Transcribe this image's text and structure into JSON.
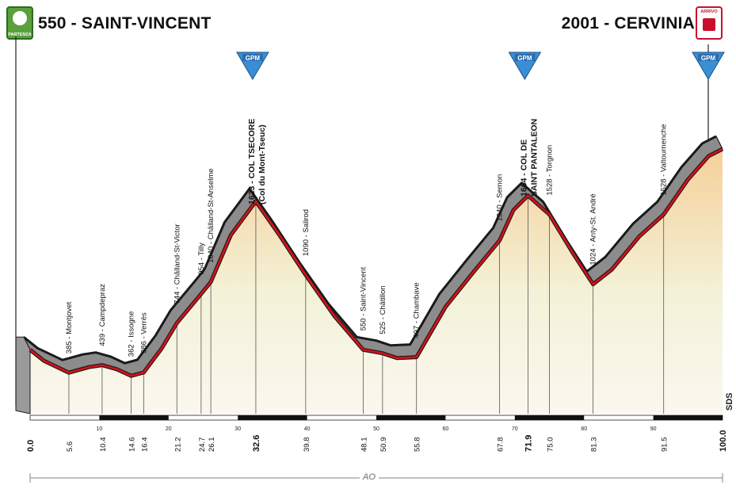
{
  "header": {
    "start": "550 - SAINT-VINCENT",
    "finish": "2001 - CERVINIA",
    "start_badge": "PARTENZA",
    "finish_badge": "ARRIVO"
  },
  "side_label": "SDS",
  "bottom_label": "AO",
  "colors": {
    "road": "#d0121b",
    "profile_fill": "#8c8c8c",
    "profile_stroke": "#1a1a1a",
    "gpm": "#3a8fd4",
    "fill_top": "#f6cf9a",
    "fill_bottom": "#fbf7ef"
  },
  "chart_data": {
    "type": "area",
    "title": "",
    "x_range": [
      0,
      100.0
    ],
    "x_unit": "km",
    "x_ticks": [
      0,
      10,
      20,
      30,
      40,
      50,
      60,
      70,
      80,
      90,
      100
    ],
    "x_tick_labels": [
      "0",
      "10",
      "20",
      "30",
      "40",
      "50",
      "60",
      "70",
      "80",
      "90",
      "100"
    ],
    "profile": [
      {
        "km": 0.0,
        "alt": 550
      },
      {
        "km": 2.0,
        "alt": 470
      },
      {
        "km": 5.6,
        "alt": 385
      },
      {
        "km": 8.5,
        "alt": 425
      },
      {
        "km": 10.4,
        "alt": 439
      },
      {
        "km": 12.5,
        "alt": 410
      },
      {
        "km": 14.6,
        "alt": 362
      },
      {
        "km": 16.4,
        "alt": 386
      },
      {
        "km": 19.0,
        "alt": 560
      },
      {
        "km": 21.2,
        "alt": 744
      },
      {
        "km": 24.7,
        "alt": 954
      },
      {
        "km": 26.1,
        "alt": 1040
      },
      {
        "km": 29.0,
        "alt": 1380
      },
      {
        "km": 32.6,
        "alt": 1623
      },
      {
        "km": 36.0,
        "alt": 1380
      },
      {
        "km": 39.8,
        "alt": 1090
      },
      {
        "km": 44.0,
        "alt": 790
      },
      {
        "km": 48.1,
        "alt": 550
      },
      {
        "km": 50.9,
        "alt": 525
      },
      {
        "km": 53.0,
        "alt": 490
      },
      {
        "km": 55.8,
        "alt": 497
      },
      {
        "km": 60.0,
        "alt": 860
      },
      {
        "km": 64.0,
        "alt": 1110
      },
      {
        "km": 67.8,
        "alt": 1340
      },
      {
        "km": 69.8,
        "alt": 1560
      },
      {
        "km": 71.9,
        "alt": 1664
      },
      {
        "km": 75.0,
        "alt": 1528
      },
      {
        "km": 78.5,
        "alt": 1240
      },
      {
        "km": 81.3,
        "alt": 1024
      },
      {
        "km": 84.0,
        "alt": 1130
      },
      {
        "km": 88.0,
        "alt": 1370
      },
      {
        "km": 91.5,
        "alt": 1528
      },
      {
        "km": 95.0,
        "alt": 1780
      },
      {
        "km": 98.0,
        "alt": 1950
      },
      {
        "km": 100.0,
        "alt": 2001
      }
    ],
    "waypoints": [
      {
        "km": 5.6,
        "km_label": "5.6",
        "label": "385 - Montjovet"
      },
      {
        "km": 10.4,
        "km_label": "10.4",
        "label": "439 - Campdepraz"
      },
      {
        "km": 14.6,
        "km_label": "14.6",
        "label": "362 - Issogne"
      },
      {
        "km": 16.4,
        "km_label": "16.4",
        "label": "386 - Verrès"
      },
      {
        "km": 21.2,
        "km_label": "21.2",
        "label": "744 - Châlland-St-Victor"
      },
      {
        "km": 24.7,
        "km_label": "24.7",
        "label": "954 - Tilly"
      },
      {
        "km": 26.1,
        "km_label": "26.1",
        "label": "1040 - Châlland-St-Anselme"
      },
      {
        "km": 32.6,
        "km_label": "32.6",
        "label": "1623 - COL TSECORE",
        "label2": "(Col du Mont-Tseuc)",
        "major": true
      },
      {
        "km": 39.8,
        "km_label": "39.8",
        "label": "1090 - Salirod"
      },
      {
        "km": 48.1,
        "km_label": "48.1",
        "label": "550 - Saint-Vincent"
      },
      {
        "km": 50.9,
        "km_label": "50.9",
        "label": "525 - Châtillon"
      },
      {
        "km": 55.8,
        "km_label": "55.8",
        "label": "497 - Chambave"
      },
      {
        "km": 67.8,
        "km_label": "67.8",
        "label": "1340 - Semon"
      },
      {
        "km": 71.9,
        "km_label": "71.9",
        "label": "1664 - COL DE",
        "label2": "SAINT PANTALEON",
        "major": true
      },
      {
        "km": 75.0,
        "km_label": "75.0",
        "label": "1528 - Torgnon"
      },
      {
        "km": 81.3,
        "km_label": "81.3",
        "label": "1024 - Anty-St. André"
      },
      {
        "km": 91.5,
        "km_label": "91.5",
        "label": "1528 - Valtournenche"
      }
    ],
    "endpoints": [
      {
        "km": 0,
        "km_label": "0.0"
      },
      {
        "km": 100,
        "km_label": "100.0"
      }
    ],
    "gpm": [
      {
        "km": 32.6,
        "label": "GPM"
      },
      {
        "km": 71.9,
        "label": "GPM"
      },
      {
        "km": 100.0,
        "label": "GPM"
      }
    ]
  }
}
